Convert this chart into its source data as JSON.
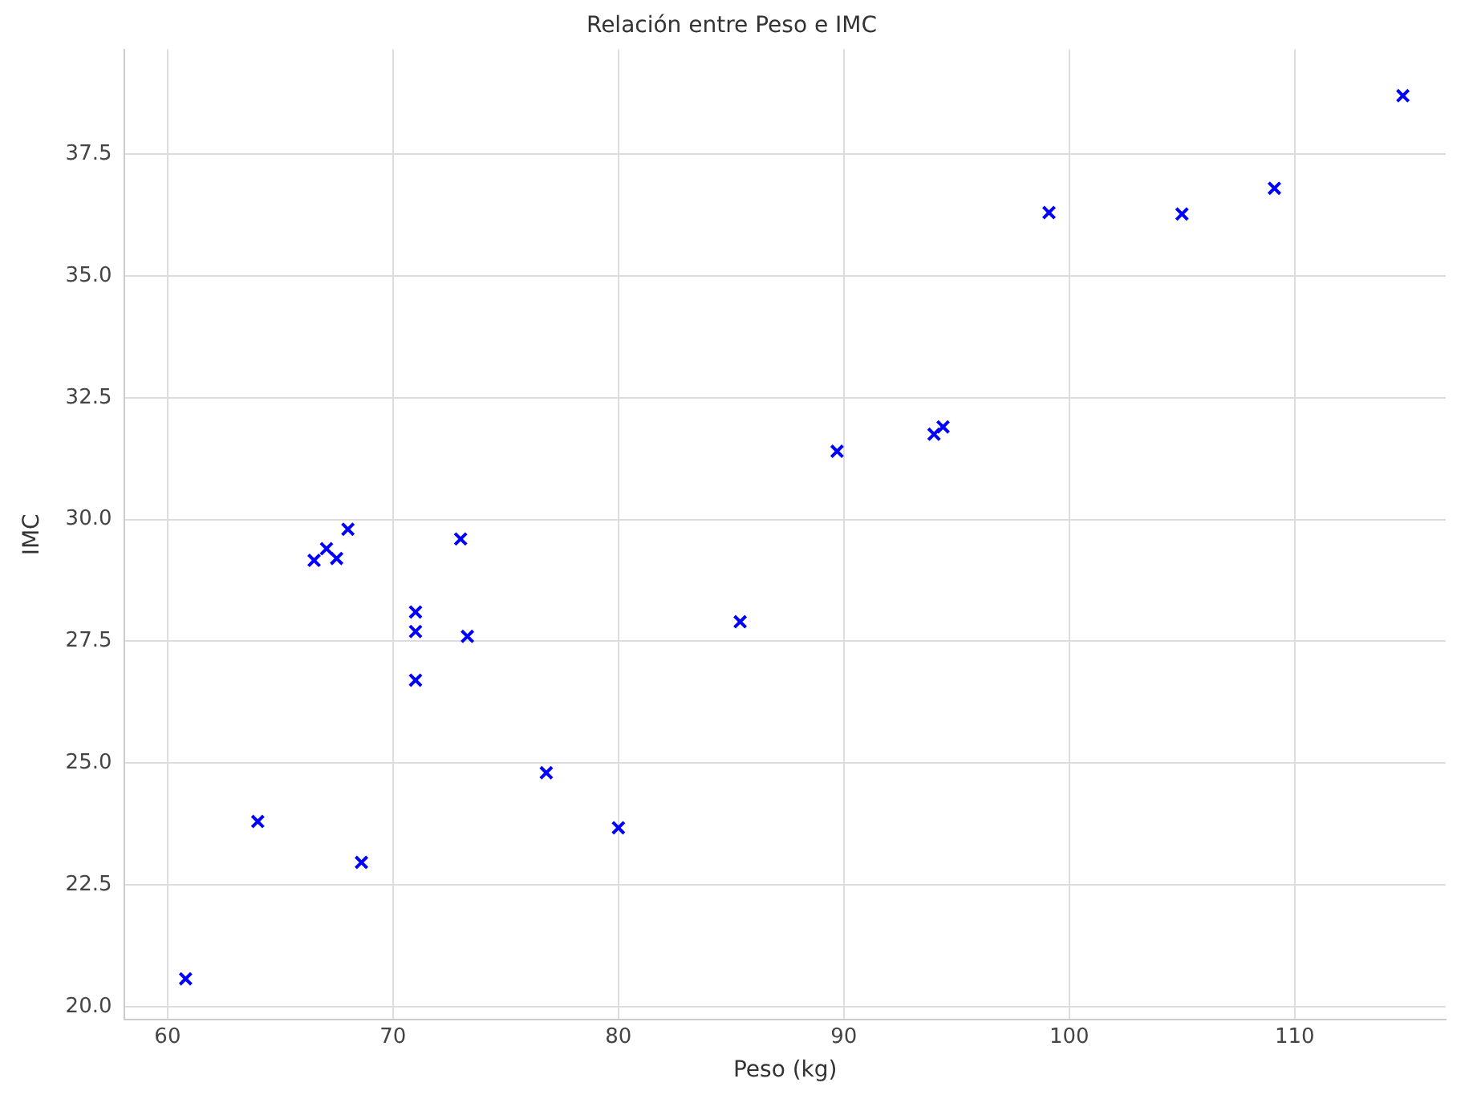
{
  "chart_data": {
    "type": "scatter",
    "title": "Relación entre Peso e IMC",
    "xlabel": "Peso (kg)",
    "ylabel": "IMC",
    "x": [
      60.8,
      64.0,
      68.6,
      66.5,
      67.05,
      67.5,
      68.0,
      73.0,
      71.0,
      71.0,
      73.3,
      71.0,
      76.8,
      80.0,
      85.4,
      89.7,
      94.0,
      94.4,
      99.1,
      105.0,
      109.1,
      114.8
    ],
    "series": [
      {
        "color": "#0000ff",
        "values": [
          20.57,
          23.8,
          22.96,
          29.16,
          29.4,
          29.2,
          29.8,
          29.6,
          28.1,
          27.7,
          27.6,
          26.7,
          24.8,
          23.67,
          27.9,
          31.4,
          31.75,
          31.9,
          36.3,
          36.27,
          36.8,
          38.7
        ]
      }
    ],
    "xlim": [
      58.1,
      116.7
    ],
    "xticks": [
      60,
      70,
      80,
      90,
      100,
      110
    ],
    "ylim": [
      19.73,
      39.65
    ],
    "yticks": [
      {
        "value": 20,
        "label": "20.0"
      },
      {
        "value": 22.5,
        "label": "22.5"
      },
      {
        "value": 25,
        "label": "25.0"
      },
      {
        "value": 27.5,
        "label": "27.5"
      },
      {
        "value": 30,
        "label": "30.0"
      },
      {
        "value": 32.5,
        "label": "32.5"
      },
      {
        "value": 35,
        "label": "35.0"
      },
      {
        "value": 37.5,
        "label": "37.5"
      }
    ],
    "grid": true,
    "legend": false,
    "marker": "cross"
  }
}
